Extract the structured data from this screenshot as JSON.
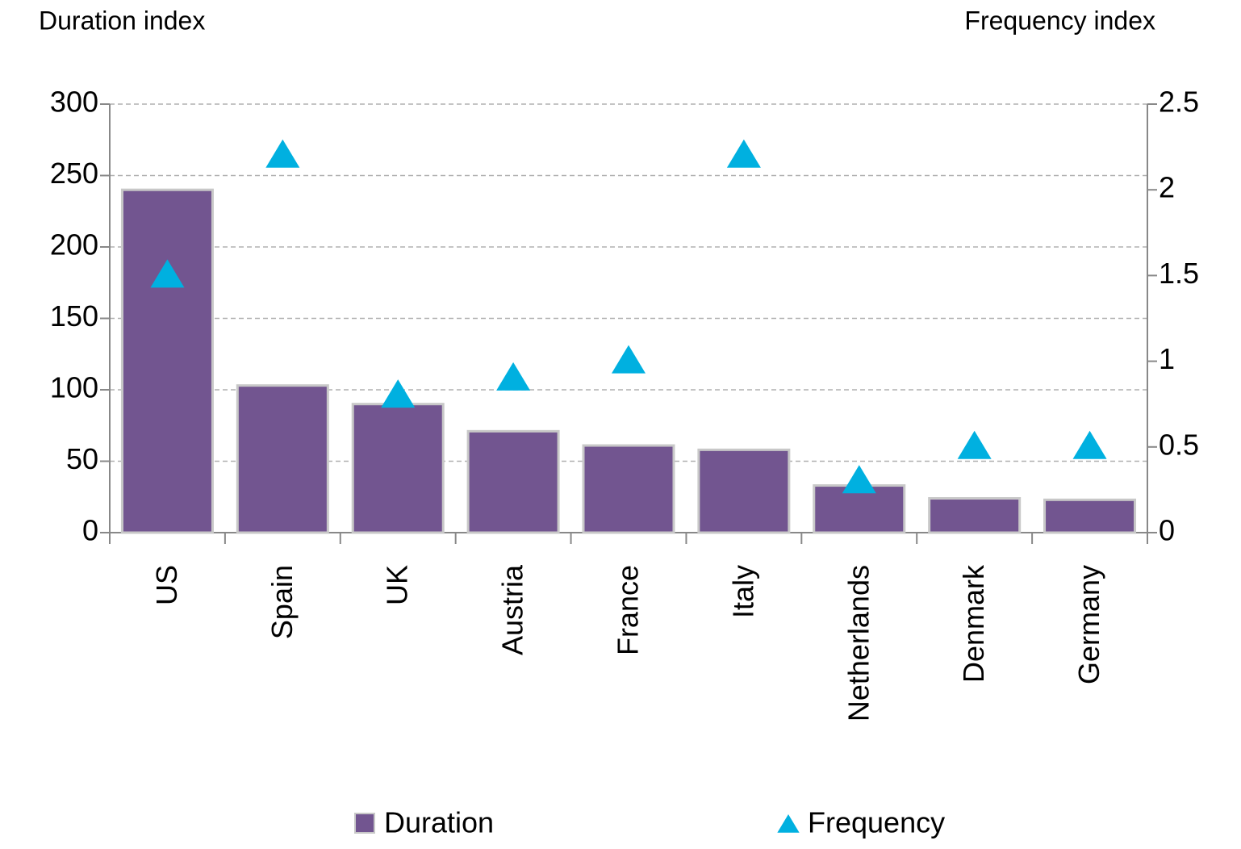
{
  "chart_data": {
    "type": "bar_scatter",
    "y_label": "Duration index",
    "y2_label": "Frequency index",
    "categories": [
      "US",
      "Spain",
      "UK",
      "Austria",
      "France",
      "Italy",
      "Netherlands",
      "Denmark",
      "Germany"
    ],
    "series": [
      {
        "name": "Duration",
        "color": "#725590",
        "type": "bar",
        "values": [
          240,
          103,
          90,
          71,
          61,
          58,
          33,
          24,
          23
        ]
      },
      {
        "name": "Frequency",
        "color": "#00b0e0",
        "type": "scatter",
        "axis": "y2",
        "values": [
          1.5,
          2.2,
          0.8,
          0.9,
          1.0,
          2.2,
          0.3,
          0.5,
          0.5
        ]
      }
    ],
    "ylim": [
      0,
      300
    ],
    "yticks": [
      0,
      50,
      100,
      150,
      200,
      250,
      300
    ],
    "y2lim": [
      0,
      2.5
    ],
    "y2ticks": [
      0,
      0.5,
      1,
      1.5,
      2,
      2.5
    ],
    "grid": true,
    "legend": "bottom"
  }
}
